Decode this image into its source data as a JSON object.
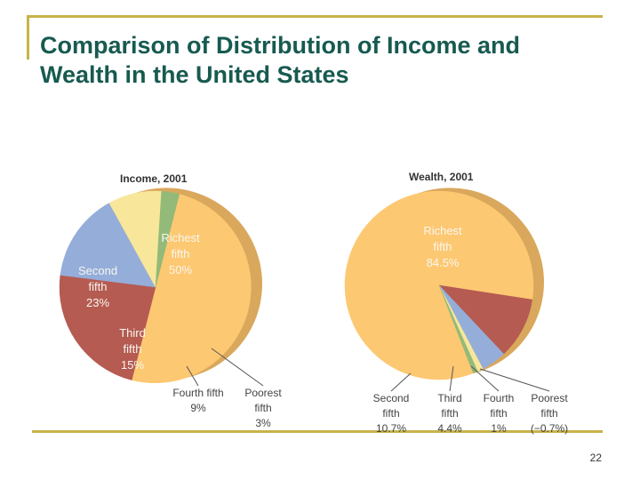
{
  "slide": {
    "title_line1": "Comparison of Distribution of Income and",
    "title_line2": "Wealth in the United States",
    "page_number": "22"
  },
  "colors": {
    "rule": "#c8b34a",
    "title": "#175a50",
    "richest": "#fdc872",
    "richest_side": "#d9a85c",
    "second": "#b55b52",
    "third": "#95add9",
    "fourth": "#f8e79a",
    "poorest": "#93ba79"
  },
  "chart_data": [
    {
      "type": "pie",
      "title": "Income, 2001",
      "slices": [
        {
          "name": "Richest fifth",
          "value": 50,
          "label_lines": [
            "Richest",
            "fifth",
            "50%"
          ]
        },
        {
          "name": "Second fifth",
          "value": 23,
          "label_lines": [
            "Second",
            "fifth",
            "23%"
          ]
        },
        {
          "name": "Third fifth",
          "value": 15,
          "label_lines": [
            "Third",
            "fifth",
            "15%"
          ]
        },
        {
          "name": "Fourth fifth",
          "value": 9,
          "label_lines": [
            "Fourth fifth",
            "9%"
          ]
        },
        {
          "name": "Poorest fifth",
          "value": 3,
          "label_lines": [
            "Poorest",
            "fifth",
            "3%"
          ]
        }
      ]
    },
    {
      "type": "pie",
      "title": "Wealth, 2001",
      "slices": [
        {
          "name": "Richest fifth",
          "value": 84.5,
          "label_lines": [
            "Richest",
            "fifth",
            "84.5%"
          ]
        },
        {
          "name": "Second fifth",
          "value": 10.7,
          "label_lines": [
            "Second",
            "fifth",
            "10.7%"
          ]
        },
        {
          "name": "Third fifth",
          "value": 4.4,
          "label_lines": [
            "Third",
            "fifth",
            "4.4%"
          ]
        },
        {
          "name": "Fourth fifth",
          "value": 1,
          "label_lines": [
            "Fourth",
            "fifth",
            "1%"
          ]
        },
        {
          "name": "Poorest fifth",
          "value": -0.7,
          "label_lines": [
            "Poorest",
            "fifth",
            "(−0.7%)"
          ]
        }
      ]
    }
  ]
}
